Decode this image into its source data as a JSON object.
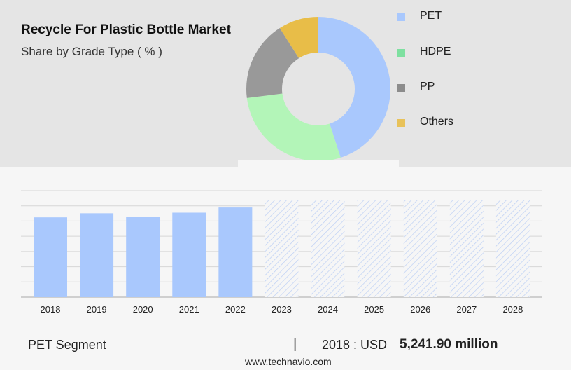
{
  "header": {
    "title": "Recycle For Plastic Bottle Market",
    "subtitle": "Share by Grade Type ( % )"
  },
  "legend": [
    {
      "label": "PET",
      "color": "#a9c8fd"
    },
    {
      "label": "HDPE",
      "color": "#7ee0a0"
    },
    {
      "label": "PP",
      "color": "#8c8c8c"
    },
    {
      "label": "Others",
      "color": "#e8c25a"
    }
  ],
  "chart_data": [
    {
      "type": "pie",
      "donut": true,
      "categories": [
        "PET",
        "HDPE",
        "PP",
        "Others"
      ],
      "values": [
        45,
        28,
        18,
        9
      ],
      "colors": [
        "#a9c8fd",
        "#b3f5b8",
        "#999999",
        "#e8bd48"
      ]
    },
    {
      "type": "bar",
      "categories": [
        "2018",
        "2019",
        "2020",
        "2021",
        "2022",
        "2023",
        "2024",
        "2025",
        "2026",
        "2027",
        "2028"
      ],
      "values": [
        5241.9,
        5510,
        5290,
        5550,
        5890,
        null,
        null,
        null,
        null,
        null,
        null
      ],
      "forecast_categories": [
        "2023",
        "2024",
        "2025",
        "2026",
        "2027",
        "2028"
      ],
      "bar_color": "#a9c8fd",
      "forecast_hatch_color": "#bccff5",
      "ylim": [
        0,
        7000
      ],
      "grid": true,
      "y_tick_labels_shown": false
    }
  ],
  "footer": {
    "segment": "PET Segment",
    "separator": "|",
    "year_label": "2018 : USD",
    "value": "5,241.90 million",
    "url": "www.technavio.com"
  }
}
